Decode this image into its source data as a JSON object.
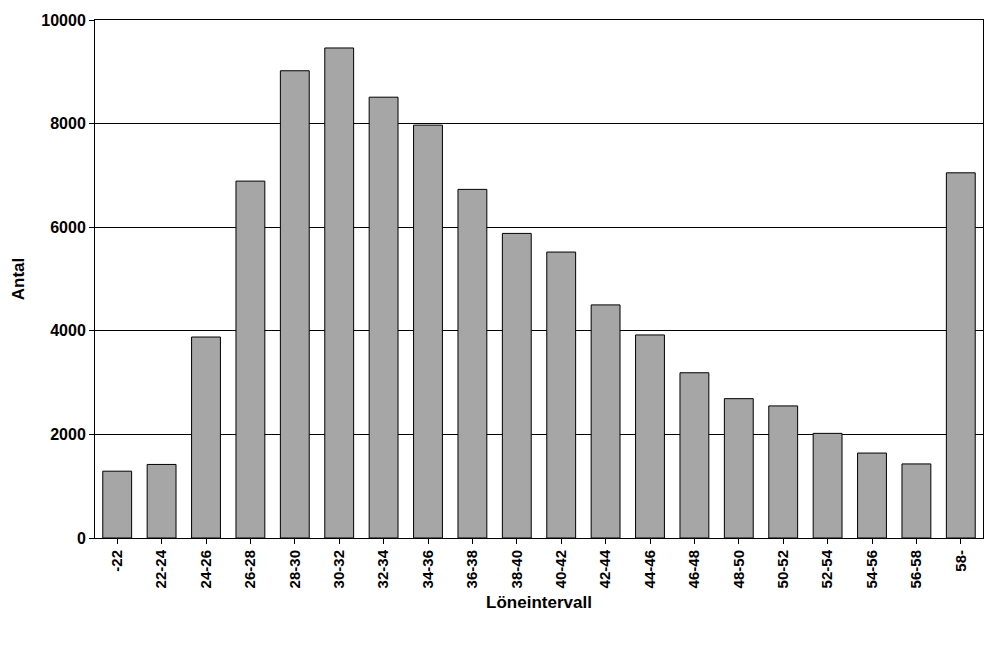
{
  "chart_data": {
    "type": "bar",
    "x_label": "Löneintervall",
    "y_label": "Antal",
    "categories": [
      "-22",
      "22-24",
      "24-26",
      "26-28",
      "28-30",
      "30-32",
      "32-34",
      "34-36",
      "36-38",
      "38-40",
      "40-42",
      "42-44",
      "44-46",
      "46-48",
      "48-50",
      "50-52",
      "52-54",
      "54-56",
      "56-58",
      "58-"
    ],
    "values": [
      1290,
      1420,
      3880,
      6890,
      9020,
      9460,
      8510,
      7970,
      6730,
      5880,
      5520,
      4500,
      3920,
      3190,
      2690,
      2550,
      2020,
      1640,
      1430,
      7050
    ],
    "color": "#a6a6a6",
    "ylim": [
      0,
      10000
    ],
    "yticks": [
      0,
      2000,
      4000,
      6000,
      8000,
      10000
    ],
    "grid": true
  }
}
